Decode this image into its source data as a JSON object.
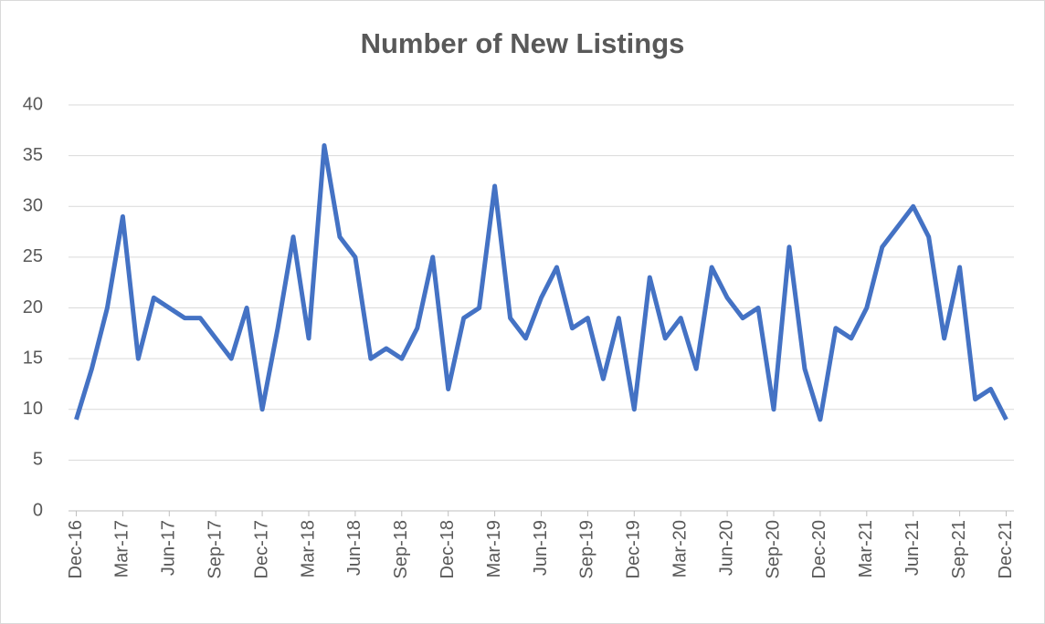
{
  "chart_data": {
    "type": "line",
    "title": "Number of New Listings",
    "categories": [
      "Dec-16",
      null,
      null,
      "Mar-17",
      null,
      null,
      "Jun-17",
      null,
      null,
      "Sep-17",
      null,
      null,
      "Dec-17",
      null,
      null,
      "Mar-18",
      null,
      null,
      "Jun-18",
      null,
      null,
      "Sep-18",
      null,
      null,
      "Dec-18",
      null,
      null,
      "Mar-19",
      null,
      null,
      "Jun-19",
      null,
      null,
      "Sep-19",
      null,
      null,
      "Dec-19",
      null,
      null,
      "Mar-20",
      null,
      null,
      "Jun-20",
      null,
      null,
      "Sep-20",
      null,
      null,
      "Dec-20",
      null,
      null,
      "Mar-21",
      null,
      null,
      "Jun-21",
      null,
      null,
      "Sep-21",
      null,
      null,
      "Dec-21"
    ],
    "series": [
      {
        "name": "New Listings",
        "color": "#4472c4",
        "values": [
          9,
          14,
          20,
          29,
          15,
          21,
          20,
          19,
          19,
          17,
          15,
          20,
          10,
          18,
          27,
          17,
          36,
          27,
          25,
          15,
          16,
          15,
          18,
          25,
          12,
          19,
          20,
          32,
          19,
          17,
          21,
          24,
          18,
          19,
          13,
          19,
          10,
          23,
          17,
          19,
          14,
          24,
          21,
          19,
          20,
          10,
          26,
          14,
          9,
          18,
          17,
          20,
          26,
          28,
          30,
          27,
          17,
          24,
          11,
          12,
          9
        ]
      }
    ],
    "ylim": [
      0,
      40
    ],
    "yticks": [
      0,
      5,
      10,
      15,
      20,
      25,
      30,
      35,
      40
    ],
    "grid": true
  }
}
